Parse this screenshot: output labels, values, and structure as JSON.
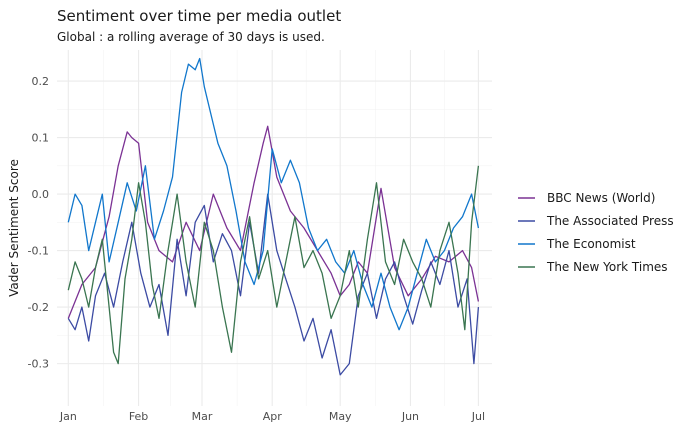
{
  "chart_data": {
    "type": "line",
    "title": "Sentiment over time per media outlet",
    "subtitle": "Global : a rolling average of 30 days is used.",
    "xlabel": "",
    "ylabel": "Vader Sentiment Score",
    "x_tick_labels": [
      "Jan",
      "Feb",
      "Mar",
      "Apr",
      "May",
      "Jun",
      "Jul"
    ],
    "x_tick_days": [
      0,
      31,
      59,
      90,
      120,
      151,
      181
    ],
    "xlim_days": [
      -5,
      187
    ],
    "y_ticks": [
      -0.3,
      -0.2,
      -0.1,
      0.0,
      0.1,
      0.2
    ],
    "y_tick_labels": [
      "-0.3",
      "-0.2",
      "-0.1",
      "0.0",
      "0.1",
      "0.2"
    ],
    "ylim": [
      -0.375,
      0.255
    ],
    "grid": true,
    "legend_position": "right",
    "series": [
      {
        "name": "BBC News (World)",
        "color": "#7b3294",
        "x": [
          0,
          6,
          12,
          18,
          22,
          26,
          28,
          31,
          35,
          40,
          46,
          52,
          58,
          64,
          70,
          76,
          82,
          86,
          88,
          92,
          98,
          104,
          110,
          116,
          120,
          124,
          128,
          132,
          138,
          144,
          150,
          156,
          162,
          168,
          174,
          178,
          181
        ],
        "values": [
          -0.22,
          -0.16,
          -0.13,
          -0.04,
          0.05,
          0.11,
          0.1,
          0.09,
          -0.05,
          -0.1,
          -0.12,
          -0.05,
          -0.1,
          0.0,
          -0.06,
          -0.1,
          0.02,
          0.09,
          0.12,
          0.03,
          -0.03,
          -0.06,
          -0.1,
          -0.14,
          -0.18,
          -0.16,
          -0.12,
          -0.14,
          0.01,
          -0.13,
          -0.18,
          -0.15,
          -0.11,
          -0.12,
          -0.1,
          -0.13,
          -0.19
        ]
      },
      {
        "name": "The Associated Press",
        "color": "#3c4ba3",
        "x": [
          0,
          3,
          6,
          9,
          12,
          16,
          20,
          24,
          28,
          32,
          36,
          40,
          44,
          48,
          52,
          56,
          60,
          64,
          68,
          72,
          76,
          80,
          84,
          88,
          92,
          96,
          100,
          104,
          108,
          112,
          116,
          120,
          124,
          128,
          132,
          136,
          140,
          144,
          148,
          152,
          156,
          160,
          164,
          168,
          172,
          176,
          179,
          181
        ],
        "values": [
          -0.22,
          -0.24,
          -0.2,
          -0.26,
          -0.18,
          -0.14,
          -0.2,
          -0.12,
          -0.05,
          -0.14,
          -0.2,
          -0.16,
          -0.25,
          -0.08,
          -0.18,
          -0.05,
          -0.02,
          -0.12,
          -0.07,
          -0.1,
          -0.18,
          -0.05,
          -0.14,
          0.0,
          -0.1,
          -0.15,
          -0.2,
          -0.26,
          -0.22,
          -0.29,
          -0.24,
          -0.32,
          -0.3,
          -0.18,
          -0.14,
          -0.22,
          -0.15,
          -0.12,
          -0.18,
          -0.23,
          -0.17,
          -0.12,
          -0.16,
          -0.1,
          -0.2,
          -0.15,
          -0.3,
          -0.2
        ]
      },
      {
        "name": "The Economist",
        "color": "#1177cc",
        "x": [
          0,
          3,
          6,
          9,
          12,
          15,
          18,
          22,
          26,
          30,
          34,
          38,
          42,
          46,
          50,
          53,
          56,
          58,
          60,
          63,
          66,
          70,
          74,
          78,
          82,
          86,
          90,
          94,
          98,
          102,
          106,
          110,
          114,
          118,
          122,
          126,
          130,
          134,
          138,
          142,
          146,
          150,
          154,
          158,
          162,
          166,
          170,
          174,
          178,
          181
        ],
        "values": [
          -0.05,
          0.0,
          -0.02,
          -0.1,
          -0.05,
          0.0,
          -0.12,
          -0.05,
          0.02,
          -0.03,
          0.05,
          -0.08,
          -0.03,
          0.03,
          0.18,
          0.23,
          0.22,
          0.24,
          0.19,
          0.14,
          0.09,
          0.05,
          -0.03,
          -0.12,
          -0.16,
          -0.1,
          0.08,
          0.02,
          0.06,
          0.02,
          -0.06,
          -0.1,
          -0.08,
          -0.12,
          -0.14,
          -0.1,
          -0.16,
          -0.2,
          -0.14,
          -0.2,
          -0.24,
          -0.2,
          -0.14,
          -0.08,
          -0.12,
          -0.1,
          -0.06,
          -0.04,
          0.0,
          -0.06
        ]
      },
      {
        "name": "The New York Times",
        "color": "#3a7550",
        "x": [
          0,
          3,
          6,
          9,
          12,
          15,
          18,
          20,
          22,
          25,
          28,
          31,
          34,
          37,
          40,
          44,
          48,
          52,
          56,
          60,
          64,
          68,
          72,
          76,
          80,
          84,
          88,
          92,
          96,
          100,
          104,
          108,
          112,
          116,
          120,
          124,
          128,
          132,
          136,
          140,
          144,
          148,
          152,
          156,
          160,
          164,
          168,
          172,
          175,
          178,
          181
        ],
        "values": [
          -0.17,
          -0.12,
          -0.15,
          -0.2,
          -0.13,
          -0.08,
          -0.2,
          -0.28,
          -0.3,
          -0.15,
          -0.08,
          0.02,
          -0.05,
          -0.16,
          -0.22,
          -0.1,
          0.0,
          -0.12,
          -0.2,
          -0.05,
          -0.1,
          -0.2,
          -0.28,
          -0.12,
          -0.04,
          -0.15,
          -0.1,
          -0.2,
          -0.12,
          -0.04,
          -0.13,
          -0.1,
          -0.14,
          -0.22,
          -0.18,
          -0.1,
          -0.2,
          -0.08,
          0.02,
          -0.12,
          -0.16,
          -0.08,
          -0.12,
          -0.15,
          -0.2,
          -0.1,
          -0.05,
          -0.14,
          -0.24,
          -0.05,
          0.05
        ]
      }
    ]
  }
}
